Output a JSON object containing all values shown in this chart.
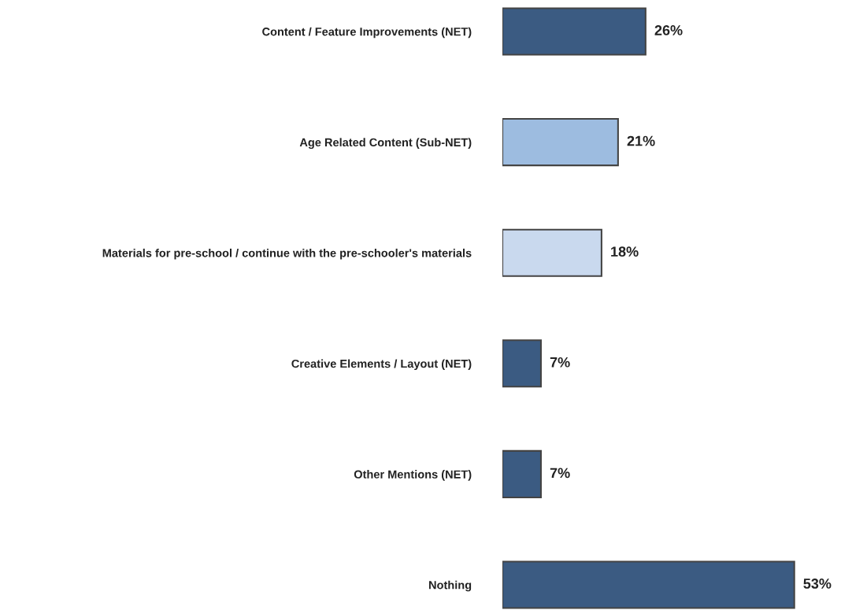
{
  "chart_data": {
    "type": "bar",
    "orientation": "horizontal",
    "categories": [
      "Content / Feature Improvements (NET)",
      "Age Related Content (Sub-NET)",
      "Materials for pre-school / continue with the pre-schooler's materials",
      "Creative Elements / Layout (NET)",
      "Other Mentions (NET)",
      "Nothing"
    ],
    "values": [
      26,
      21,
      18,
      7,
      7,
      53
    ],
    "colors": [
      "#3b5b82",
      "#9dbce0",
      "#c9d9ee",
      "#3b5b82",
      "#3b5b82",
      "#3b5b82"
    ],
    "value_labels": [
      "26%",
      "21%",
      "18%",
      "7%",
      "7%",
      "53%"
    ]
  }
}
